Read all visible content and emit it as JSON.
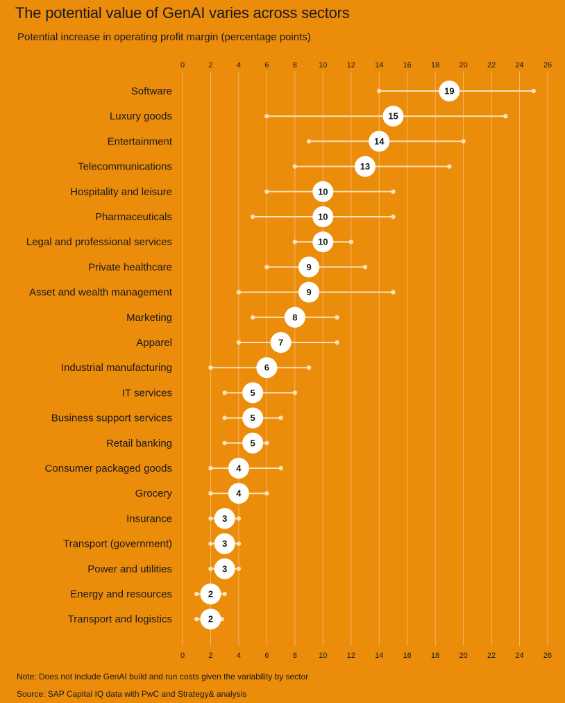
{
  "chart_data": {
    "type": "range-dot",
    "title": "The potential value of GenAI varies across sectors",
    "subtitle": "Potential increase in operating profit margin (percentage points)",
    "xlim": [
      0,
      26
    ],
    "xticks": [
      0,
      2,
      4,
      6,
      8,
      10,
      12,
      14,
      16,
      18,
      20,
      22,
      24,
      26
    ],
    "rows": [
      {
        "label": "Software",
        "low": 14,
        "high": 25,
        "value": 19
      },
      {
        "label": "Luxury goods",
        "low": 6,
        "high": 23,
        "value": 15
      },
      {
        "label": "Entertainment",
        "low": 9,
        "high": 20,
        "value": 14
      },
      {
        "label": "Telecommunications",
        "low": 8,
        "high": 19,
        "value": 13
      },
      {
        "label": "Hospitality and leisure",
        "low": 6,
        "high": 15,
        "value": 10
      },
      {
        "label": "Pharmaceuticals",
        "low": 5,
        "high": 15,
        "value": 10
      },
      {
        "label": "Legal and professional services",
        "low": 8,
        "high": 12,
        "value": 10
      },
      {
        "label": "Private healthcare",
        "low": 6,
        "high": 13,
        "value": 9
      },
      {
        "label": "Asset and wealth management",
        "low": 4,
        "high": 15,
        "value": 9
      },
      {
        "label": "Marketing",
        "low": 5,
        "high": 11,
        "value": 8
      },
      {
        "label": "Apparel",
        "low": 4,
        "high": 11,
        "value": 7
      },
      {
        "label": "Industrial manufacturing",
        "low": 2,
        "high": 9,
        "value": 6
      },
      {
        "label": "IT services",
        "low": 3,
        "high": 8,
        "value": 5
      },
      {
        "label": "Business support services",
        "low": 3,
        "high": 7,
        "value": 5
      },
      {
        "label": "Retail banking",
        "low": 3,
        "high": 6,
        "value": 5
      },
      {
        "label": "Consumer packaged goods",
        "low": 2,
        "high": 7,
        "value": 4
      },
      {
        "label": "Grocery",
        "low": 2,
        "high": 6,
        "value": 4
      },
      {
        "label": "Insurance",
        "low": 2,
        "high": 4,
        "value": 3
      },
      {
        "label": "Transport (government)",
        "low": 2,
        "high": 4,
        "value": 3
      },
      {
        "label": "Power and utilities",
        "low": 2,
        "high": 4,
        "value": 3
      },
      {
        "label": "Energy and resources",
        "low": 1,
        "high": 3,
        "value": 2
      },
      {
        "label": "Transport and logistics",
        "low": 1,
        "high": 2.8,
        "value": 2
      }
    ]
  },
  "footer": {
    "note": "Note: Does not include GenAI build and run costs given the variability by sector",
    "source": "Source: SAP Capital IQ data with PwC and Strategy& analysis"
  },
  "colors": {
    "background": "#EB8C0B",
    "range_line": "#FDE2B8",
    "grid": "#F7B866",
    "marker": "#FFFFFF",
    "text": "#1a1a1a"
  }
}
